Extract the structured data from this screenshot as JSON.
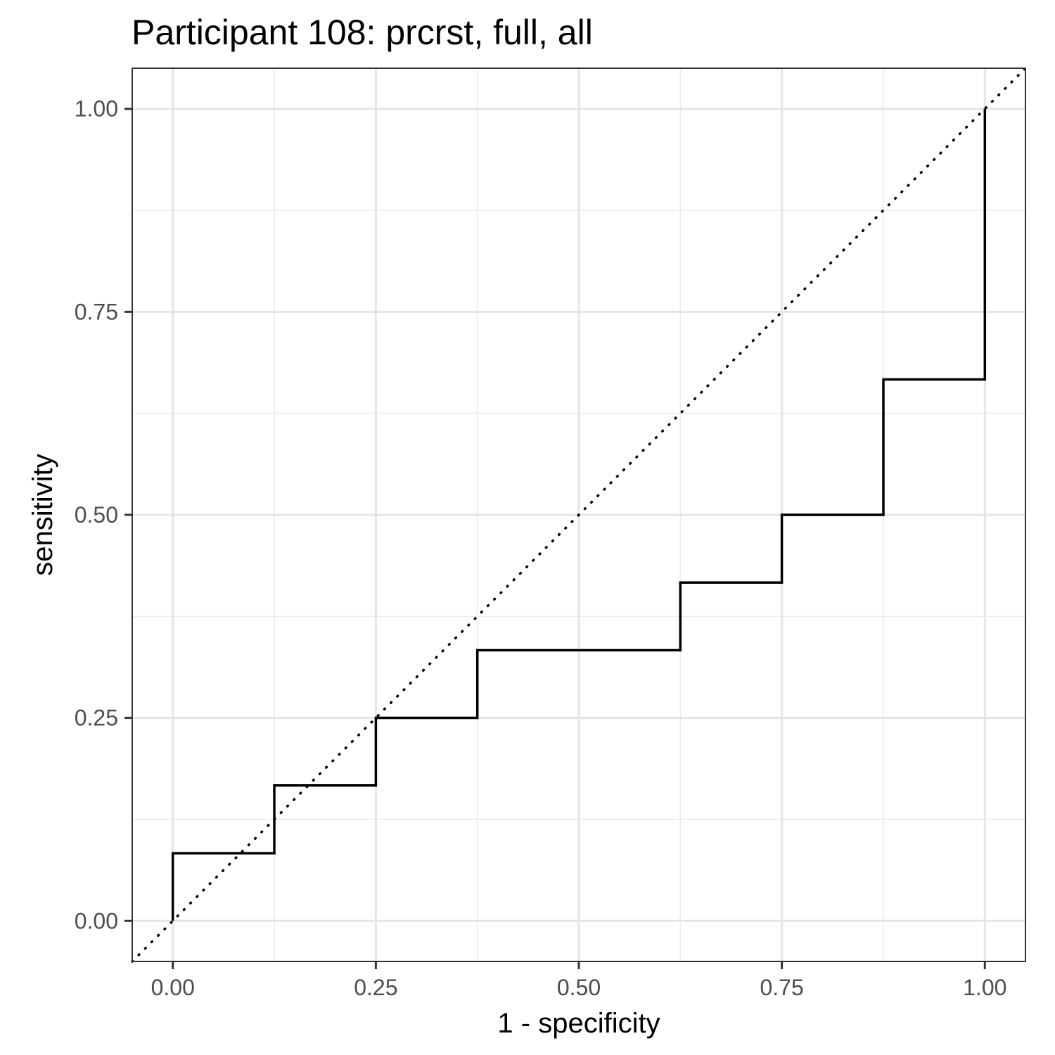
{
  "chart_data": {
    "type": "line",
    "title": "Participant 108: prcrst, full, all",
    "xlabel": "1 - specificity",
    "ylabel": "sensitivity",
    "xlim": [
      -0.05,
      1.05
    ],
    "ylim": [
      -0.05,
      1.05
    ],
    "grid": true,
    "x_ticks": [
      0,
      0.25,
      0.5,
      0.75,
      1
    ],
    "x_tick_labels": [
      "0.00",
      "0.25",
      "0.50",
      "0.75",
      "1.00"
    ],
    "y_ticks": [
      0,
      0.25,
      0.5,
      0.75,
      1
    ],
    "y_tick_labels": [
      "0.00",
      "0.25",
      "0.50",
      "0.75",
      "1.00"
    ],
    "series": [
      {
        "style": "step",
        "color": "#000000",
        "points": [
          {
            "x": 0.0,
            "y": 0.0
          },
          {
            "x": 0.0,
            "y": 0.0833
          },
          {
            "x": 0.125,
            "y": 0.0833
          },
          {
            "x": 0.125,
            "y": 0.1667
          },
          {
            "x": 0.25,
            "y": 0.1667
          },
          {
            "x": 0.25,
            "y": 0.25
          },
          {
            "x": 0.375,
            "y": 0.25
          },
          {
            "x": 0.375,
            "y": 0.3333
          },
          {
            "x": 0.625,
            "y": 0.3333
          },
          {
            "x": 0.625,
            "y": 0.4167
          },
          {
            "x": 0.75,
            "y": 0.4167
          },
          {
            "x": 0.75,
            "y": 0.5
          },
          {
            "x": 0.875,
            "y": 0.5
          },
          {
            "x": 0.875,
            "y": 0.6667
          },
          {
            "x": 1.0,
            "y": 0.6667
          },
          {
            "x": 1.0,
            "y": 1.0
          }
        ]
      }
    ],
    "reference_line": {
      "style": "dotted",
      "color": "#000000",
      "x": [
        -0.05,
        1.05
      ],
      "y": [
        -0.05,
        1.05
      ]
    }
  }
}
